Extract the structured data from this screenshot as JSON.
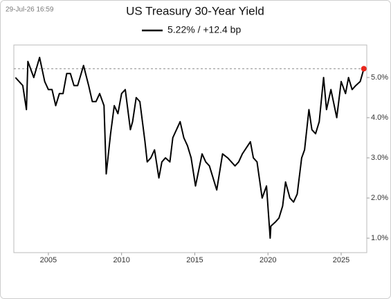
{
  "chart_data": {
    "type": "line",
    "title": "US Treasury 30-Year Yield",
    "annotation": "29-Jul-26 16:59",
    "x": [
      2002.75,
      2003.0,
      2003.25,
      2003.5,
      2003.6,
      2004.0,
      2004.4,
      2004.75,
      2005.0,
      2005.25,
      2005.5,
      2005.75,
      2006.0,
      2006.25,
      2006.5,
      2006.75,
      2007.0,
      2007.4,
      2007.75,
      2008.0,
      2008.25,
      2008.5,
      2008.8,
      2008.95,
      2009.25,
      2009.5,
      2009.75,
      2010.0,
      2010.25,
      2010.6,
      2010.75,
      2011.0,
      2011.25,
      2011.6,
      2011.75,
      2012.0,
      2012.25,
      2012.55,
      2012.75,
      2013.0,
      2013.3,
      2013.5,
      2013.75,
      2014.0,
      2014.25,
      2014.5,
      2014.75,
      2015.05,
      2015.5,
      2015.75,
      2016.0,
      2016.5,
      2016.9,
      2017.25,
      2017.75,
      2018.0,
      2018.25,
      2018.8,
      2019.0,
      2019.25,
      2019.6,
      2019.9,
      2020.15,
      2020.2,
      2020.5,
      2020.75,
      2021.0,
      2021.2,
      2021.5,
      2021.75,
      2022.0,
      2022.3,
      2022.5,
      2022.8,
      2023.0,
      2023.25,
      2023.5,
      2023.8,
      2024.0,
      2024.3,
      2024.7,
      2025.0,
      2025.3,
      2025.5,
      2025.75,
      2026.0,
      2026.3,
      2026.55
    ],
    "series": [
      {
        "name": "5.22% / +12.4 bp",
        "color": "#000000",
        "values": [
          5.0,
          4.9,
          4.8,
          4.2,
          5.4,
          5.0,
          5.5,
          4.9,
          4.7,
          4.7,
          4.3,
          4.6,
          4.6,
          5.1,
          5.1,
          4.8,
          4.8,
          5.3,
          4.8,
          4.4,
          4.4,
          4.6,
          4.3,
          2.6,
          3.6,
          4.3,
          4.1,
          4.6,
          4.7,
          3.7,
          3.9,
          4.5,
          4.4,
          3.4,
          2.9,
          3.0,
          3.2,
          2.5,
          2.9,
          3.0,
          2.9,
          3.5,
          3.7,
          3.9,
          3.5,
          3.3,
          3.0,
          2.3,
          3.1,
          2.9,
          2.8,
          2.2,
          3.1,
          3.0,
          2.8,
          2.9,
          3.1,
          3.4,
          3.0,
          2.9,
          2.0,
          2.3,
          1.0,
          1.3,
          1.4,
          1.5,
          1.8,
          2.4,
          2.0,
          1.9,
          2.1,
          3.0,
          3.2,
          4.2,
          3.7,
          3.6,
          3.9,
          5.0,
          4.2,
          4.7,
          4.0,
          4.9,
          4.6,
          5.0,
          4.7,
          4.8,
          4.9,
          5.22
        ]
      }
    ],
    "end_marker_color": "#e8261c",
    "xlim": [
      2002.64,
      2026.75
    ],
    "xticks": [
      2005,
      2010,
      2015,
      2020,
      2025
    ],
    "ylim": [
      0.64,
      5.81
    ],
    "yticks": [
      {
        "value": 1,
        "label": "1.0%"
      },
      {
        "value": 2,
        "label": "2.0%"
      },
      {
        "value": 3,
        "label": "3.0%"
      },
      {
        "value": 4,
        "label": "4.0%"
      },
      {
        "value": 5,
        "label": "5.0%"
      }
    ]
  }
}
